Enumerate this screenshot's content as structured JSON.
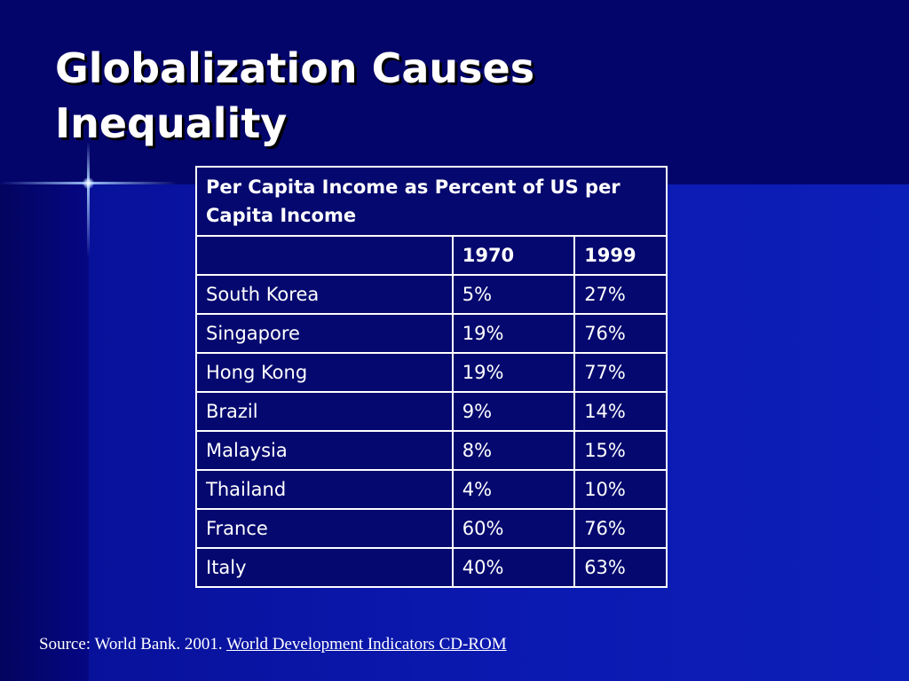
{
  "slide": {
    "title_line1": "Globalization Causes",
    "title_line2": "Inequality"
  },
  "table": {
    "caption": "Per Capita Income as Percent of US per Capita Income",
    "headers": [
      "",
      "1970",
      "1999"
    ],
    "rows": [
      {
        "country": "South Korea",
        "y1970": "5%",
        "y1999": "27%"
      },
      {
        "country": "Singapore",
        "y1970": "19%",
        "y1999": "76%"
      },
      {
        "country": "Hong Kong",
        "y1970": "19%",
        "y1999": "77%"
      },
      {
        "country": "Brazil",
        "y1970": "9%",
        "y1999": "14%"
      },
      {
        "country": "Malaysia",
        "y1970": "8%",
        "y1999": "15%"
      },
      {
        "country": "Thailand",
        "y1970": "4%",
        "y1999": "10%"
      },
      {
        "country": "France",
        "y1970": "60%",
        "y1999": "76%"
      },
      {
        "country": "Italy",
        "y1970": "40%",
        "y1999": "63%"
      }
    ]
  },
  "source": {
    "prefix": "Source: World Bank. 2001. ",
    "link_text": "World Development Indicators CD-ROM"
  },
  "colors": {
    "background": "#05076a",
    "panel": "#0b19b0",
    "table_fill": "#05086e",
    "text": "#ffffff"
  }
}
